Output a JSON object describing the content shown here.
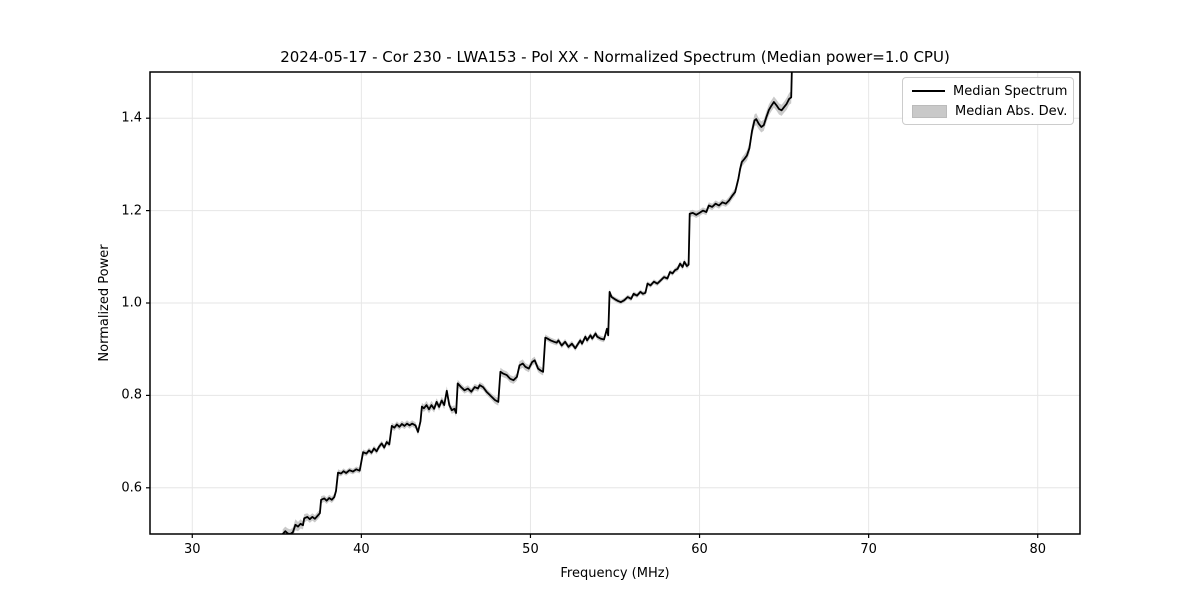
{
  "title": "2024-05-17 - Cor 230 - LWA153 - Pol XX - Normalized Spectrum (Median power=1.0 CPU)",
  "legend": {
    "items": [
      {
        "label": "Median Spectrum",
        "swatch": "black-line"
      },
      {
        "label": "Median Abs. Dev.",
        "swatch": "gray-patch"
      }
    ]
  },
  "colors": {
    "line": "#000000",
    "band": "#c4c4c4",
    "grid": "#e6e6e6",
    "spine": "#000000",
    "background": "#ffffff"
  },
  "chart_data": {
    "type": "line",
    "title": "2024-05-17 - Cor 230 - LWA153 - Pol XX - Normalized Spectrum (Median power=1.0 CPU)",
    "xlabel": "Frequency (MHz)",
    "ylabel": "Normalized Power",
    "xlim": [
      27.5,
      82.5
    ],
    "ylim": [
      0.5,
      1.5
    ],
    "xticks": [
      30,
      40,
      50,
      60,
      70,
      80
    ],
    "yticks": [
      0.6,
      0.8,
      1.0,
      1.2,
      1.4
    ],
    "grid": true,
    "legend_position": "upper right",
    "series": [
      {
        "name": "Median Spectrum",
        "style": "line",
        "points_format": [
          "freq_MHz",
          "normalized_power",
          "median_abs_dev"
        ],
        "points": [
          [
            35.35,
            0.5,
            0.01
          ],
          [
            35.5,
            0.506,
            0.01
          ],
          [
            35.65,
            0.501,
            0.011
          ],
          [
            35.8,
            0.5,
            0.01
          ],
          [
            35.95,
            0.504,
            0.01
          ],
          [
            36.1,
            0.52,
            0.012
          ],
          [
            36.25,
            0.516,
            0.01
          ],
          [
            36.4,
            0.522,
            0.01
          ],
          [
            36.55,
            0.519,
            0.009
          ],
          [
            36.62,
            0.534,
            0.009
          ],
          [
            36.8,
            0.537,
            0.008
          ],
          [
            36.95,
            0.532,
            0.008
          ],
          [
            37.1,
            0.537,
            0.008
          ],
          [
            37.25,
            0.533,
            0.008
          ],
          [
            37.4,
            0.539,
            0.008
          ],
          [
            37.55,
            0.545,
            0.008
          ],
          [
            37.62,
            0.574,
            0.008
          ],
          [
            37.8,
            0.577,
            0.007
          ],
          [
            37.95,
            0.572,
            0.007
          ],
          [
            38.1,
            0.578,
            0.007
          ],
          [
            38.25,
            0.574,
            0.007
          ],
          [
            38.4,
            0.58,
            0.007
          ],
          [
            38.5,
            0.593,
            0.007
          ],
          [
            38.62,
            0.633,
            0.007
          ],
          [
            38.8,
            0.631,
            0.006
          ],
          [
            38.95,
            0.636,
            0.006
          ],
          [
            39.1,
            0.632,
            0.006
          ],
          [
            39.3,
            0.638,
            0.006
          ],
          [
            39.5,
            0.635,
            0.006
          ],
          [
            39.7,
            0.64,
            0.006
          ],
          [
            39.9,
            0.637,
            0.006
          ],
          [
            40.1,
            0.677,
            0.006
          ],
          [
            40.3,
            0.674,
            0.006
          ],
          [
            40.45,
            0.681,
            0.006
          ],
          [
            40.6,
            0.676,
            0.006
          ],
          [
            40.75,
            0.685,
            0.006
          ],
          [
            40.9,
            0.679,
            0.006
          ],
          [
            41.05,
            0.689,
            0.006
          ],
          [
            41.2,
            0.696,
            0.006
          ],
          [
            41.35,
            0.687,
            0.006
          ],
          [
            41.5,
            0.699,
            0.006
          ],
          [
            41.65,
            0.694,
            0.006
          ],
          [
            41.8,
            0.734,
            0.007
          ],
          [
            41.95,
            0.73,
            0.007
          ],
          [
            42.1,
            0.737,
            0.007
          ],
          [
            42.25,
            0.732,
            0.007
          ],
          [
            42.4,
            0.738,
            0.007
          ],
          [
            42.55,
            0.734,
            0.007
          ],
          [
            42.7,
            0.739,
            0.007
          ],
          [
            42.85,
            0.735,
            0.007
          ],
          [
            43.0,
            0.739,
            0.007
          ],
          [
            43.2,
            0.735,
            0.007
          ],
          [
            43.35,
            0.721,
            0.007
          ],
          [
            43.5,
            0.744,
            0.008
          ],
          [
            43.58,
            0.776,
            0.008
          ],
          [
            43.7,
            0.772,
            0.008
          ],
          [
            43.85,
            0.779,
            0.009
          ],
          [
            44.0,
            0.77,
            0.009
          ],
          [
            44.15,
            0.779,
            0.009
          ],
          [
            44.3,
            0.771,
            0.008
          ],
          [
            44.45,
            0.786,
            0.008
          ],
          [
            44.6,
            0.775,
            0.008
          ],
          [
            44.75,
            0.789,
            0.008
          ],
          [
            44.9,
            0.779,
            0.009
          ],
          [
            45.05,
            0.81,
            0.01
          ],
          [
            45.2,
            0.779,
            0.009
          ],
          [
            45.35,
            0.768,
            0.008
          ],
          [
            45.5,
            0.771,
            0.008
          ],
          [
            45.6,
            0.762,
            0.008
          ],
          [
            45.7,
            0.826,
            0.008
          ],
          [
            45.9,
            0.818,
            0.007
          ],
          [
            46.1,
            0.811,
            0.007
          ],
          [
            46.3,
            0.815,
            0.007
          ],
          [
            46.5,
            0.808,
            0.007
          ],
          [
            46.7,
            0.818,
            0.007
          ],
          [
            46.9,
            0.815,
            0.007
          ],
          [
            47.0,
            0.822,
            0.007
          ],
          [
            47.2,
            0.818,
            0.007
          ],
          [
            47.4,
            0.808,
            0.007
          ],
          [
            47.7,
            0.797,
            0.007
          ],
          [
            47.9,
            0.79,
            0.008
          ],
          [
            48.1,
            0.786,
            0.008
          ],
          [
            48.22,
            0.851,
            0.009
          ],
          [
            48.4,
            0.847,
            0.008
          ],
          [
            48.6,
            0.844,
            0.008
          ],
          [
            48.8,
            0.836,
            0.008
          ],
          [
            49.0,
            0.833,
            0.008
          ],
          [
            49.2,
            0.84,
            0.008
          ],
          [
            49.35,
            0.865,
            0.009
          ],
          [
            49.55,
            0.869,
            0.009
          ],
          [
            49.7,
            0.862,
            0.008
          ],
          [
            49.9,
            0.858,
            0.008
          ],
          [
            50.1,
            0.872,
            0.008
          ],
          [
            50.25,
            0.876,
            0.008
          ],
          [
            50.45,
            0.858,
            0.008
          ],
          [
            50.6,
            0.854,
            0.008
          ],
          [
            50.75,
            0.851,
            0.008
          ],
          [
            50.88,
            0.925,
            0.007
          ],
          [
            51.0,
            0.923,
            0.006
          ],
          [
            51.2,
            0.919,
            0.006
          ],
          [
            51.4,
            0.916,
            0.006
          ],
          [
            51.55,
            0.914,
            0.006
          ],
          [
            51.65,
            0.919,
            0.006
          ],
          [
            51.85,
            0.908,
            0.006
          ],
          [
            52.05,
            0.916,
            0.006
          ],
          [
            52.25,
            0.905,
            0.006
          ],
          [
            52.45,
            0.912,
            0.006
          ],
          [
            52.65,
            0.902,
            0.006
          ],
          [
            52.75,
            0.908,
            0.006
          ],
          [
            52.95,
            0.919,
            0.006
          ],
          [
            53.05,
            0.912,
            0.006
          ],
          [
            53.25,
            0.927,
            0.006
          ],
          [
            53.35,
            0.919,
            0.006
          ],
          [
            53.55,
            0.93,
            0.006
          ],
          [
            53.65,
            0.923,
            0.006
          ],
          [
            53.85,
            0.934,
            0.006
          ],
          [
            53.95,
            0.927,
            0.006
          ],
          [
            54.15,
            0.923,
            0.006
          ],
          [
            54.35,
            0.921,
            0.006
          ],
          [
            54.45,
            0.934,
            0.006
          ],
          [
            54.52,
            0.944,
            0.006
          ],
          [
            54.6,
            0.93,
            0.006
          ],
          [
            54.68,
            1.024,
            0.006
          ],
          [
            54.8,
            1.013,
            0.005
          ],
          [
            55.0,
            1.008,
            0.005
          ],
          [
            55.2,
            1.004,
            0.005
          ],
          [
            55.35,
            1.002,
            0.005
          ],
          [
            55.55,
            1.006,
            0.005
          ],
          [
            55.75,
            1.013,
            0.005
          ],
          [
            55.95,
            1.009,
            0.005
          ],
          [
            56.1,
            1.02,
            0.005
          ],
          [
            56.3,
            1.016,
            0.005
          ],
          [
            56.5,
            1.024,
            0.005
          ],
          [
            56.65,
            1.02,
            0.005
          ],
          [
            56.8,
            1.022,
            0.005
          ],
          [
            56.92,
            1.042,
            0.005
          ],
          [
            57.1,
            1.038,
            0.005
          ],
          [
            57.3,
            1.046,
            0.005
          ],
          [
            57.5,
            1.042,
            0.005
          ],
          [
            57.7,
            1.049,
            0.005
          ],
          [
            57.9,
            1.056,
            0.005
          ],
          [
            58.1,
            1.053,
            0.005
          ],
          [
            58.25,
            1.067,
            0.005
          ],
          [
            58.4,
            1.064,
            0.005
          ],
          [
            58.55,
            1.071,
            0.005
          ],
          [
            58.7,
            1.074,
            0.006
          ],
          [
            58.85,
            1.085,
            0.006
          ],
          [
            59.0,
            1.078,
            0.006
          ],
          [
            59.1,
            1.089,
            0.006
          ],
          [
            59.25,
            1.08,
            0.006
          ],
          [
            59.35,
            1.083,
            0.006
          ],
          [
            59.42,
            1.193,
            0.007
          ],
          [
            59.6,
            1.195,
            0.007
          ],
          [
            59.8,
            1.191,
            0.007
          ],
          [
            60.0,
            1.195,
            0.007
          ],
          [
            60.2,
            1.2,
            0.007
          ],
          [
            60.4,
            1.197,
            0.007
          ],
          [
            60.55,
            1.211,
            0.007
          ],
          [
            60.75,
            1.208,
            0.007
          ],
          [
            60.95,
            1.215,
            0.007
          ],
          [
            61.15,
            1.211,
            0.007
          ],
          [
            61.35,
            1.218,
            0.007
          ],
          [
            61.55,
            1.215,
            0.007
          ],
          [
            61.75,
            1.222,
            0.008
          ],
          [
            61.95,
            1.233,
            0.008
          ],
          [
            62.1,
            1.24,
            0.008
          ],
          [
            62.2,
            1.254,
            0.009
          ],
          [
            62.3,
            1.269,
            0.009
          ],
          [
            62.4,
            1.29,
            0.01
          ],
          [
            62.5,
            1.305,
            0.01
          ],
          [
            62.65,
            1.312,
            0.01
          ],
          [
            62.8,
            1.319,
            0.011
          ],
          [
            62.95,
            1.335,
            0.012
          ],
          [
            63.1,
            1.372,
            0.013
          ],
          [
            63.25,
            1.395,
            0.013
          ],
          [
            63.35,
            1.398,
            0.013
          ],
          [
            63.5,
            1.388,
            0.012
          ],
          [
            63.65,
            1.381,
            0.012
          ],
          [
            63.8,
            1.385,
            0.012
          ],
          [
            63.95,
            1.402,
            0.012
          ],
          [
            64.1,
            1.418,
            0.012
          ],
          [
            64.25,
            1.427,
            0.012
          ],
          [
            64.4,
            1.435,
            0.012
          ],
          [
            64.55,
            1.428,
            0.012
          ],
          [
            64.7,
            1.42,
            0.012
          ],
          [
            64.85,
            1.417,
            0.012
          ],
          [
            65.0,
            1.424,
            0.012
          ],
          [
            65.15,
            1.431,
            0.013
          ],
          [
            65.3,
            1.442,
            0.013
          ],
          [
            65.42,
            1.445,
            0.013
          ],
          [
            65.5,
            1.56,
            0.013
          ]
        ]
      }
    ]
  }
}
